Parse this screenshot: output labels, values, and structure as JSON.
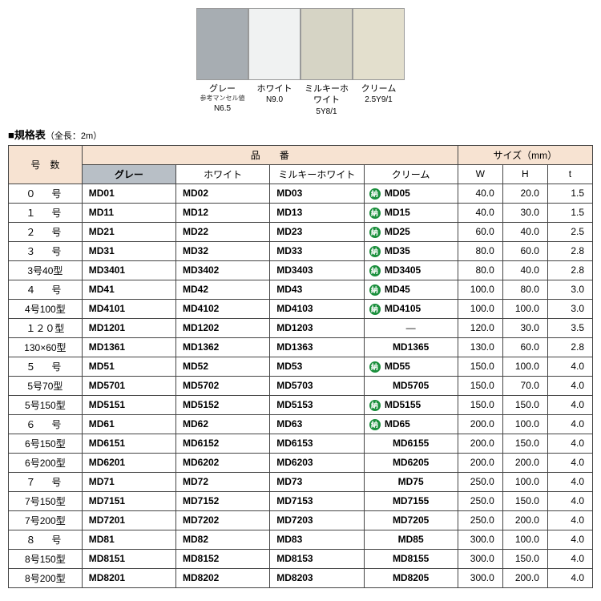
{
  "swatches": [
    {
      "name": "グレー",
      "sub": "参考マンセル値",
      "code": "N6.5",
      "color": "#a7adb2"
    },
    {
      "name": "ホワイト",
      "sub": "",
      "code": "N9.0",
      "color": "#f0f2f2"
    },
    {
      "name": "ミルキーホワイト",
      "sub": "",
      "code": "5Y8/1",
      "color": "#d6d4c5"
    },
    {
      "name": "クリーム",
      "sub": "",
      "code": "2.5Y9/1",
      "color": "#e3dfcd"
    }
  ],
  "sectionTitle": "■規格表",
  "sectionSub": "（全長：2m）",
  "headers": {
    "gou": "号　数",
    "hinban": "品　　番",
    "size": "サイズ（mm）",
    "gray": "グレー",
    "white": "ホワイト",
    "milky": "ミルキーホワイト",
    "cream": "クリーム",
    "W": "W",
    "H": "H",
    "t": "t"
  },
  "badge": "納",
  "rows": [
    {
      "gou": "０　号",
      "gray": "MD01",
      "white": "MD02",
      "milky": "MD03",
      "cream": "MD05",
      "badge": true,
      "W": "40.0",
      "H": "20.0",
      "t": "1.5"
    },
    {
      "gou": "１　号",
      "gray": "MD11",
      "white": "MD12",
      "milky": "MD13",
      "cream": "MD15",
      "badge": true,
      "W": "40.0",
      "H": "30.0",
      "t": "1.5"
    },
    {
      "gou": "２　号",
      "gray": "MD21",
      "white": "MD22",
      "milky": "MD23",
      "cream": "MD25",
      "badge": true,
      "W": "60.0",
      "H": "40.0",
      "t": "2.5"
    },
    {
      "gou": "３　号",
      "gray": "MD31",
      "white": "MD32",
      "milky": "MD33",
      "cream": "MD35",
      "badge": true,
      "W": "80.0",
      "H": "60.0",
      "t": "2.8"
    },
    {
      "gou": "3号40型",
      "tight": true,
      "gray": "MD3401",
      "white": "MD3402",
      "milky": "MD3403",
      "cream": "MD3405",
      "badge": true,
      "W": "80.0",
      "H": "40.0",
      "t": "2.8"
    },
    {
      "gou": "４　号",
      "gray": "MD41",
      "white": "MD42",
      "milky": "MD43",
      "cream": "MD45",
      "badge": true,
      "W": "100.0",
      "H": "80.0",
      "t": "3.0"
    },
    {
      "gou": "4号100型",
      "tight": true,
      "gray": "MD4101",
      "white": "MD4102",
      "milky": "MD4103",
      "cream": "MD4105",
      "badge": true,
      "W": "100.0",
      "H": "100.0",
      "t": "3.0"
    },
    {
      "gou": "１２０型",
      "tight": true,
      "gray": "MD1201",
      "white": "MD1202",
      "milky": "MD1203",
      "cream": "—",
      "dash": true,
      "W": "120.0",
      "H": "30.0",
      "t": "3.5"
    },
    {
      "gou": "130×60型",
      "tight": true,
      "gray": "MD1361",
      "white": "MD1362",
      "milky": "MD1363",
      "cream": "MD1365",
      "center": true,
      "W": "130.0",
      "H": "60.0",
      "t": "2.8"
    },
    {
      "gou": "５　号",
      "gray": "MD51",
      "white": "MD52",
      "milky": "MD53",
      "cream": "MD55",
      "badge": true,
      "W": "150.0",
      "H": "100.0",
      "t": "4.0"
    },
    {
      "gou": "5号70型",
      "tight": true,
      "gray": "MD5701",
      "white": "MD5702",
      "milky": "MD5703",
      "cream": "MD5705",
      "center": true,
      "W": "150.0",
      "H": "70.0",
      "t": "4.0"
    },
    {
      "gou": "5号150型",
      "tight": true,
      "gray": "MD5151",
      "white": "MD5152",
      "milky": "MD5153",
      "cream": "MD5155",
      "badge": true,
      "W": "150.0",
      "H": "150.0",
      "t": "4.0"
    },
    {
      "gou": "６　号",
      "gray": "MD61",
      "white": "MD62",
      "milky": "MD63",
      "cream": "MD65",
      "badge": true,
      "W": "200.0",
      "H": "100.0",
      "t": "4.0"
    },
    {
      "gou": "6号150型",
      "tight": true,
      "gray": "MD6151",
      "white": "MD6152",
      "milky": "MD6153",
      "cream": "MD6155",
      "center": true,
      "W": "200.0",
      "H": "150.0",
      "t": "4.0"
    },
    {
      "gou": "6号200型",
      "tight": true,
      "gray": "MD6201",
      "white": "MD6202",
      "milky": "MD6203",
      "cream": "MD6205",
      "center": true,
      "W": "200.0",
      "H": "200.0",
      "t": "4.0"
    },
    {
      "gou": "７　号",
      "gray": "MD71",
      "white": "MD72",
      "milky": "MD73",
      "cream": "MD75",
      "center": true,
      "W": "250.0",
      "H": "100.0",
      "t": "4.0"
    },
    {
      "gou": "7号150型",
      "tight": true,
      "gray": "MD7151",
      "white": "MD7152",
      "milky": "MD7153",
      "cream": "MD7155",
      "center": true,
      "W": "250.0",
      "H": "150.0",
      "t": "4.0"
    },
    {
      "gou": "7号200型",
      "tight": true,
      "gray": "MD7201",
      "white": "MD7202",
      "milky": "MD7203",
      "cream": "MD7205",
      "center": true,
      "W": "250.0",
      "H": "200.0",
      "t": "4.0"
    },
    {
      "gou": "８　号",
      "gray": "MD81",
      "white": "MD82",
      "milky": "MD83",
      "cream": "MD85",
      "center": true,
      "W": "300.0",
      "H": "100.0",
      "t": "4.0"
    },
    {
      "gou": "8号150型",
      "tight": true,
      "gray": "MD8151",
      "white": "MD8152",
      "milky": "MD8153",
      "cream": "MD8155",
      "center": true,
      "W": "300.0",
      "H": "150.0",
      "t": "4.0"
    },
    {
      "gou": "8号200型",
      "tight": true,
      "gray": "MD8201",
      "white": "MD8202",
      "milky": "MD8203",
      "cream": "MD8205",
      "center": true,
      "W": "300.0",
      "H": "200.0",
      "t": "4.0"
    }
  ],
  "colWidths": {
    "gou": "90px",
    "prod": "115px",
    "size": "55px"
  }
}
